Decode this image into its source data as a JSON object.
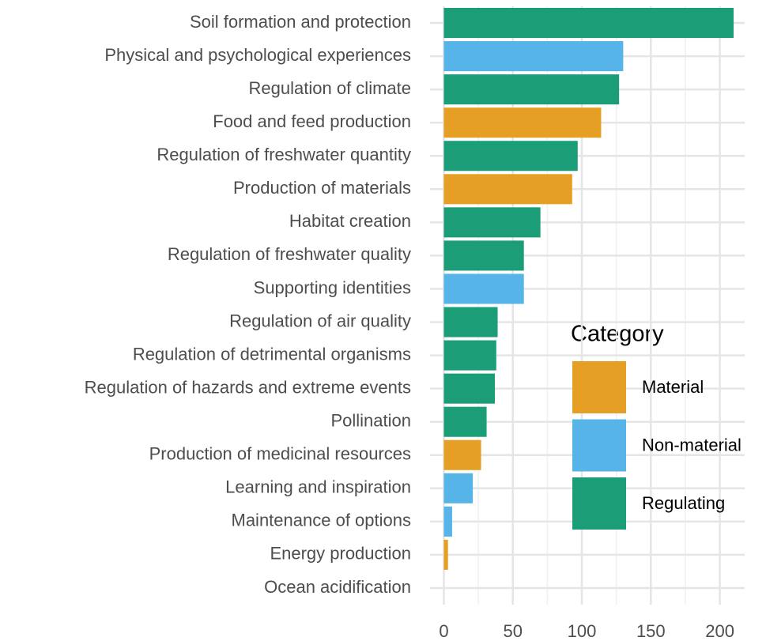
{
  "chart_data": {
    "type": "bar",
    "orientation": "horizontal",
    "categories": [
      "Soil formation and protection",
      "Physical and psychological experiences",
      "Regulation of climate",
      "Food and feed production",
      "Regulation of freshwater quantity",
      "Production of materials",
      "Habitat creation",
      "Regulation of freshwater quality",
      "Supporting identities",
      "Regulation of air quality",
      "Regulation of detrimental organisms",
      "Regulation of hazards and extreme events",
      "Pollination",
      "Production of medicinal resources",
      "Learning and inspiration",
      "Maintenance of options",
      "Energy production",
      "Ocean acidification"
    ],
    "series": [
      {
        "name": "Material",
        "color": "#E69F25",
        "values": [
          null,
          null,
          null,
          114,
          null,
          93,
          null,
          null,
          null,
          null,
          null,
          null,
          null,
          27,
          null,
          null,
          3,
          null
        ]
      },
      {
        "name": "Non-material",
        "color": "#56B4E9",
        "values": [
          null,
          130,
          null,
          null,
          null,
          null,
          null,
          null,
          58,
          null,
          null,
          null,
          null,
          null,
          21,
          6,
          null,
          null
        ]
      },
      {
        "name": "Regulating",
        "color": "#1B9E77",
        "values": [
          210,
          null,
          127,
          null,
          97,
          null,
          70,
          58,
          null,
          39,
          38,
          37,
          31,
          null,
          null,
          null,
          null,
          0
        ]
      }
    ],
    "legend_title": "Category",
    "xlim": [
      -10,
      218
    ],
    "xticks": [
      0,
      50,
      100,
      150,
      200
    ],
    "minor_xticks": [
      25,
      75,
      125,
      175
    ],
    "grid": true
  }
}
